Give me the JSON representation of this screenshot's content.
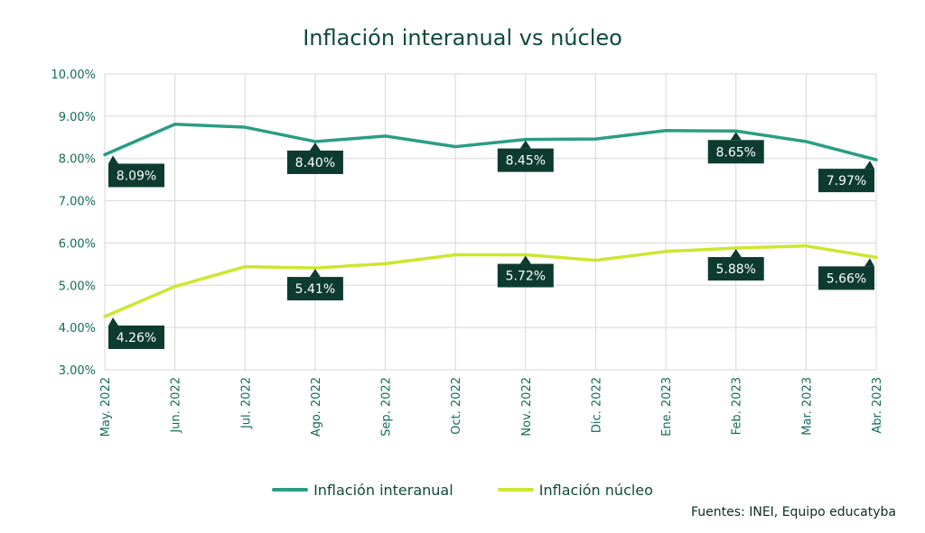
{
  "title": "Inflación interanual vs núcleo",
  "source": "Fuentes: INEI, Equipo educatyba",
  "chart_data": {
    "type": "line",
    "categories": [
      "May. 2022",
      "Jun. 2022",
      "Jul. 2022",
      "Ago. 2022",
      "Sep. 2022",
      "Oct. 2022",
      "Nov. 2022",
      "Dic. 2022",
      "Ene. 2023",
      "Feb. 2023",
      "Mar. 2023",
      "Abr. 2023"
    ],
    "y_ticks": [
      "3.00%",
      "4.00%",
      "5.00%",
      "6.00%",
      "7.00%",
      "8.00%",
      "9.00%",
      "10.00%"
    ],
    "ylim": [
      3,
      10
    ],
    "grid": true,
    "legend_position": "bottom",
    "series": [
      {
        "name": "Inflación interanual",
        "color": "#2a9d84",
        "values": [
          8.09,
          8.81,
          8.74,
          8.4,
          8.53,
          8.28,
          8.45,
          8.46,
          8.66,
          8.65,
          8.4,
          7.97
        ],
        "labels": [
          {
            "index": 0,
            "text": "8.09%"
          },
          {
            "index": 3,
            "text": "8.40%"
          },
          {
            "index": 6,
            "text": "8.45%"
          },
          {
            "index": 9,
            "text": "8.65%"
          },
          {
            "index": 11,
            "text": "7.97%"
          }
        ]
      },
      {
        "name": "Inflación núcleo",
        "color": "#cde62f",
        "values": [
          4.26,
          4.97,
          5.44,
          5.41,
          5.51,
          5.72,
          5.72,
          5.59,
          5.8,
          5.88,
          5.93,
          5.66
        ],
        "labels": [
          {
            "index": 0,
            "text": "4.26%"
          },
          {
            "index": 3,
            "text": "5.41%"
          },
          {
            "index": 6,
            "text": "5.72%"
          },
          {
            "index": 9,
            "text": "5.88%"
          },
          {
            "index": 11,
            "text": "5.66%"
          }
        ]
      }
    ]
  }
}
